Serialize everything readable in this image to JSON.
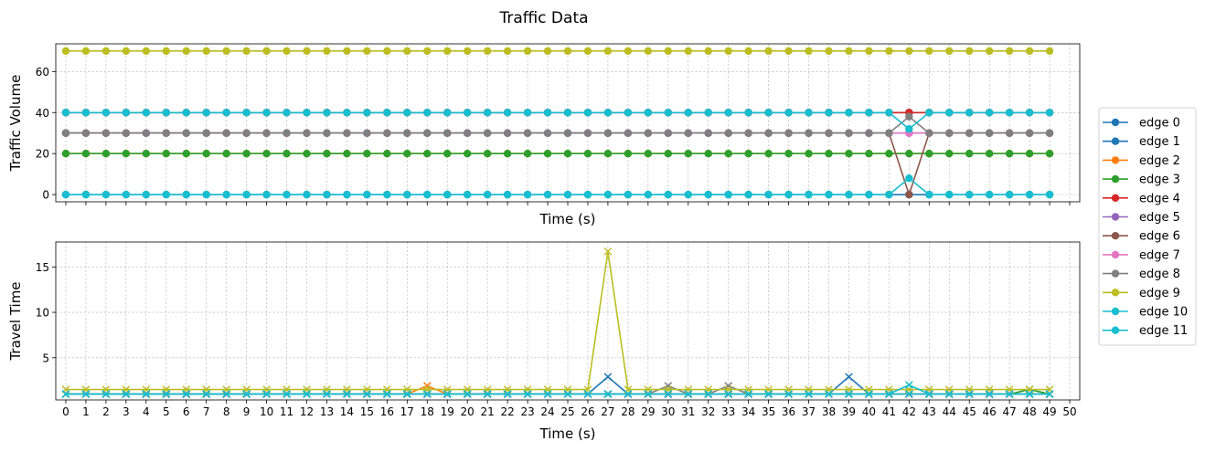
{
  "figure_title": "Traffic Data",
  "legend": {
    "placement": "right",
    "entries": [
      "edge 0",
      "edge 1",
      "edge 2",
      "edge 3",
      "edge 4",
      "edge 5",
      "edge 6",
      "edge 7",
      "edge 8",
      "edge 9",
      "edge 10",
      "edge 11"
    ]
  },
  "colors": [
    "#1f77b4",
    "#1f77b4",
    "#ff7f0e",
    "#2ca02c",
    "#d62728",
    "#9467bd",
    "#8c564b",
    "#e377c2",
    "#7f7f7f",
    "#bcbd22",
    "#17becf",
    "#17becf"
  ],
  "chart_data": [
    {
      "type": "line",
      "marker": "circle",
      "xlabel": "Time (s)",
      "ylabel": "Traffic Volume",
      "xlim": [
        -0.5,
        50.5
      ],
      "ylim": [
        -3.5,
        73.5
      ],
      "yticks": [
        0,
        20,
        40,
        60
      ],
      "show_xtick_labels": false,
      "grid": true,
      "baselines": [
        0,
        40,
        20,
        20,
        40,
        30,
        30,
        30,
        30,
        70,
        40,
        0
      ],
      "overrides": [
        {
          "series": 4,
          "x": 42,
          "y": 40
        },
        {
          "series": 6,
          "x": 42,
          "y": 0
        },
        {
          "series": 7,
          "x": 42,
          "y": 30
        },
        {
          "series": 8,
          "x": 42,
          "y": 38
        },
        {
          "series": 10,
          "x": 42,
          "y": 32
        },
        {
          "series": 11,
          "x": 42,
          "y": 8
        }
      ]
    },
    {
      "type": "line",
      "marker": "x",
      "xlabel": "Time (s)",
      "ylabel": "Travel Time",
      "xlim": [
        -0.5,
        50.5
      ],
      "ylim": [
        0.35,
        17.75
      ],
      "yticks": [
        5,
        10,
        15
      ],
      "xticks": [
        0,
        1,
        2,
        3,
        4,
        5,
        6,
        7,
        8,
        9,
        10,
        11,
        12,
        13,
        14,
        15,
        16,
        17,
        18,
        19,
        20,
        21,
        22,
        23,
        24,
        25,
        26,
        27,
        28,
        29,
        30,
        31,
        32,
        33,
        34,
        35,
        36,
        37,
        38,
        39,
        40,
        41,
        42,
        43,
        44,
        45,
        46,
        47,
        48,
        49,
        50
      ],
      "grid": true,
      "baselines": [
        1,
        1,
        1,
        1,
        1,
        1,
        1,
        1,
        1,
        1.5,
        1,
        1
      ],
      "overrides": [
        {
          "series": 2,
          "x": 18,
          "y": 1.9
        },
        {
          "series": 9,
          "x": 27,
          "y": 16.7
        },
        {
          "series": 1,
          "x": 27,
          "y": 2.9
        },
        {
          "series": 8,
          "x": 30,
          "y": 1.9
        },
        {
          "series": 8,
          "x": 33,
          "y": 1.9
        },
        {
          "series": 1,
          "x": 39,
          "y": 2.9
        },
        {
          "series": 11,
          "x": 42,
          "y": 2.0
        },
        {
          "series": 3,
          "x": 48,
          "y": 1.5
        }
      ]
    }
  ]
}
